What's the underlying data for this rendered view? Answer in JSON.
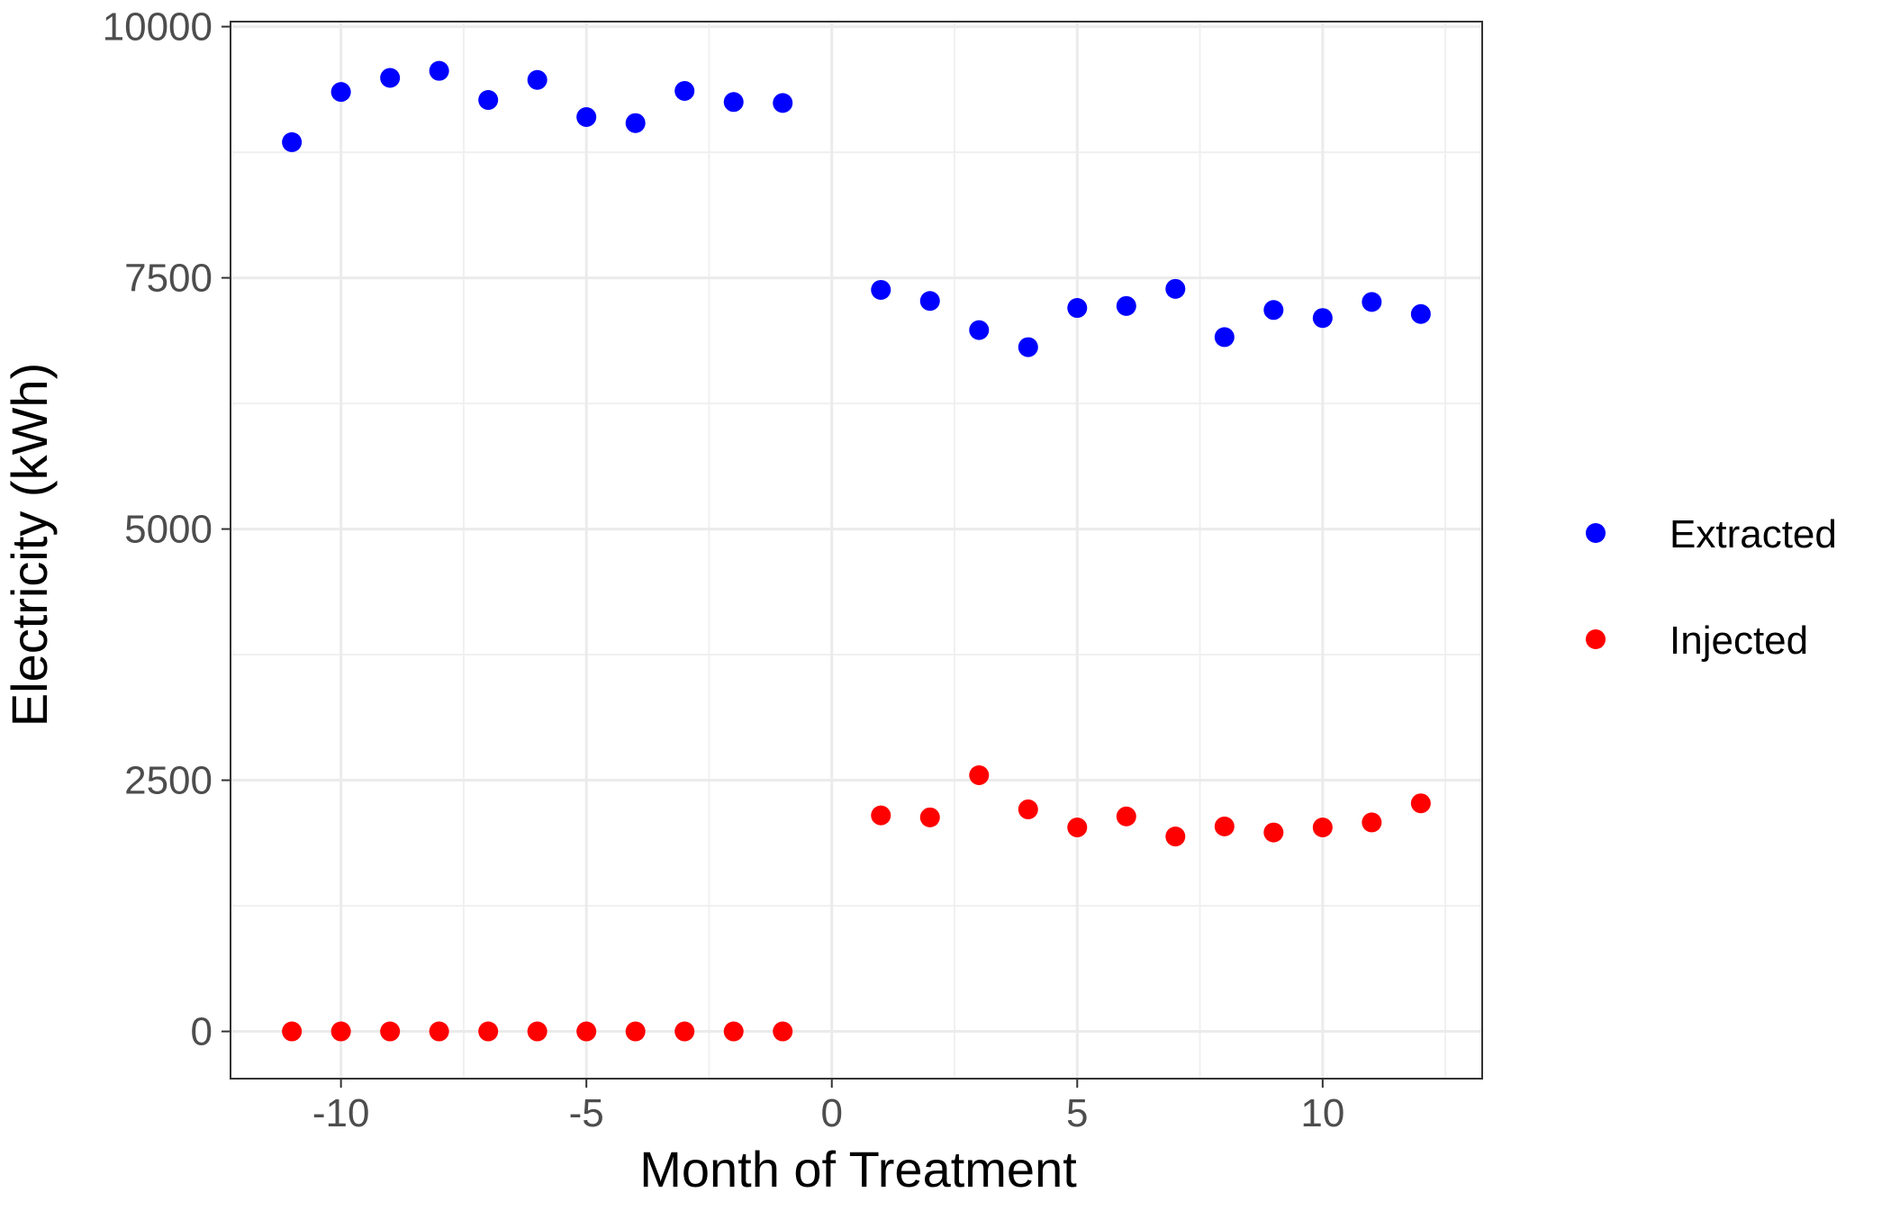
{
  "chart_data": {
    "type": "scatter",
    "xlabel": "Month of Treatment",
    "ylabel": "Electricity (kWh)",
    "xlim": [
      -12.25,
      13.25
    ],
    "ylim": [
      -470,
      10050
    ],
    "x_ticks": [
      -10,
      -5,
      0,
      5,
      10
    ],
    "x_tick_labels": [
      "-10",
      "-5",
      "0",
      "5",
      "10"
    ],
    "y_ticks": [
      0,
      2500,
      5000,
      7500,
      10000
    ],
    "y_tick_labels": [
      "0",
      "2500",
      "5000",
      "7500",
      "10000"
    ],
    "grid": true,
    "legend_position": "right",
    "series": [
      {
        "name": "Extracted",
        "color": "#0000ff",
        "points": [
          {
            "x": -11,
            "y": 8850
          },
          {
            "x": -10,
            "y": 9350
          },
          {
            "x": -9,
            "y": 9490
          },
          {
            "x": -8,
            "y": 9560
          },
          {
            "x": -7,
            "y": 9270
          },
          {
            "x": -6,
            "y": 9470
          },
          {
            "x": -5,
            "y": 9100
          },
          {
            "x": -4,
            "y": 9040
          },
          {
            "x": -3,
            "y": 9360
          },
          {
            "x": -2,
            "y": 9250
          },
          {
            "x": -1,
            "y": 9240
          },
          {
            "x": 1,
            "y": 7380
          },
          {
            "x": 2,
            "y": 7270
          },
          {
            "x": 3,
            "y": 6980
          },
          {
            "x": 4,
            "y": 6810
          },
          {
            "x": 5,
            "y": 7200
          },
          {
            "x": 6,
            "y": 7220
          },
          {
            "x": 7,
            "y": 7390
          },
          {
            "x": 8,
            "y": 6910
          },
          {
            "x": 9,
            "y": 7180
          },
          {
            "x": 10,
            "y": 7100
          },
          {
            "x": 11,
            "y": 7260
          },
          {
            "x": 12,
            "y": 7140
          }
        ]
      },
      {
        "name": "Injected",
        "color": "#ff0000",
        "points": [
          {
            "x": -11,
            "y": 0
          },
          {
            "x": -10,
            "y": 0
          },
          {
            "x": -9,
            "y": 0
          },
          {
            "x": -8,
            "y": 0
          },
          {
            "x": -7,
            "y": 0
          },
          {
            "x": -6,
            "y": 0
          },
          {
            "x": -5,
            "y": 0
          },
          {
            "x": -4,
            "y": 0
          },
          {
            "x": -3,
            "y": 0
          },
          {
            "x": -2,
            "y": 0
          },
          {
            "x": -1,
            "y": 0
          },
          {
            "x": 1,
            "y": 2150
          },
          {
            "x": 2,
            "y": 2130
          },
          {
            "x": 3,
            "y": 2550
          },
          {
            "x": 4,
            "y": 2210
          },
          {
            "x": 5,
            "y": 2030
          },
          {
            "x": 6,
            "y": 2140
          },
          {
            "x": 7,
            "y": 1940
          },
          {
            "x": 8,
            "y": 2040
          },
          {
            "x": 9,
            "y": 1980
          },
          {
            "x": 10,
            "y": 2030
          },
          {
            "x": 11,
            "y": 2080
          },
          {
            "x": 12,
            "y": 2270
          }
        ]
      }
    ]
  }
}
